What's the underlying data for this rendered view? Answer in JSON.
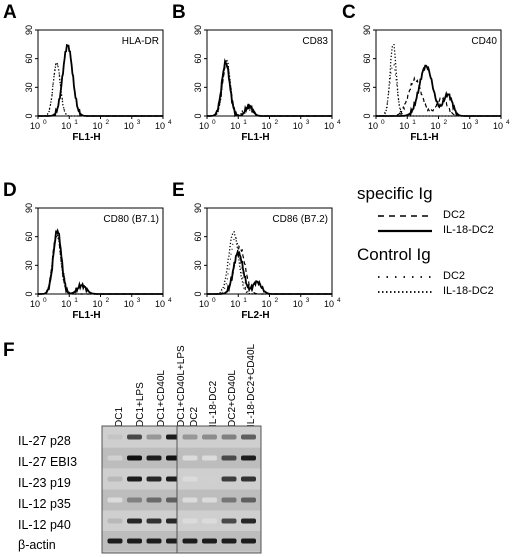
{
  "panels": {
    "A": {
      "letter": "A",
      "marker": "HLA-DR",
      "xaxis_label": "FL1-H"
    },
    "B": {
      "letter": "B",
      "marker": "CD83",
      "xaxis_label": "FL1-H"
    },
    "C": {
      "letter": "C",
      "marker": "CD40",
      "xaxis_label": "FL1-H"
    },
    "D": {
      "letter": "D",
      "marker": "CD80 (B7.1)",
      "xaxis_label": "FL1-H"
    },
    "E": {
      "letter": "E",
      "marker": "CD86 (B7.2)",
      "xaxis_label": "FL2-H"
    },
    "F": {
      "letter": "F"
    }
  },
  "histogram_axes": {
    "y_ticks": [
      "0",
      "30",
      "60",
      "90"
    ],
    "x_ticks": [
      "10",
      "10",
      "10",
      "10",
      "10"
    ],
    "x_exponents": [
      "0",
      "1",
      "2",
      "3",
      "4"
    ]
  },
  "legend": {
    "specific_title": "specific Ig",
    "control_title": "Control Ig",
    "entries": [
      {
        "label": "DC2",
        "style": "dashed"
      },
      {
        "label": "IL-18-DC2",
        "style": "solid"
      },
      {
        "label": "DC2",
        "style": "sparse-dotted"
      },
      {
        "label": "IL-18-DC2",
        "style": "dense-dotted"
      }
    ]
  },
  "gel": {
    "row_labels": [
      "IL-27 p28",
      "IL-27 EBI3",
      "IL-23 p19",
      "IL-12 p35",
      "IL-12 p40",
      "β-actin"
    ],
    "left_lanes": [
      "DC1",
      "DC1+LPS",
      "DC1+CD40L",
      "DC1+CD40L+LPS"
    ],
    "right_lanes": [
      "DC2",
      "IL-18-DC2",
      "DC2+CD40L",
      "IL-18-DC2+CD40L"
    ],
    "band_intensity_left": [
      [
        0.15,
        0.7,
        0.35,
        0.9
      ],
      [
        0.1,
        0.95,
        0.9,
        0.95
      ],
      [
        0.2,
        0.9,
        0.85,
        0.9
      ],
      [
        0.05,
        0.45,
        0.55,
        0.6
      ],
      [
        0.2,
        0.85,
        0.8,
        0.85
      ],
      [
        0.9,
        0.9,
        0.9,
        0.9
      ]
    ],
    "band_intensity_right": [
      [
        0.35,
        0.4,
        0.45,
        0.6
      ],
      [
        0.05,
        0.05,
        0.7,
        0.9
      ],
      [
        0.05,
        0.1,
        0.75,
        0.8
      ],
      [
        0.05,
        0.05,
        0.5,
        0.6
      ],
      [
        0.05,
        0.05,
        0.7,
        0.85
      ],
      [
        0.9,
        0.9,
        0.9,
        0.9
      ]
    ]
  }
}
